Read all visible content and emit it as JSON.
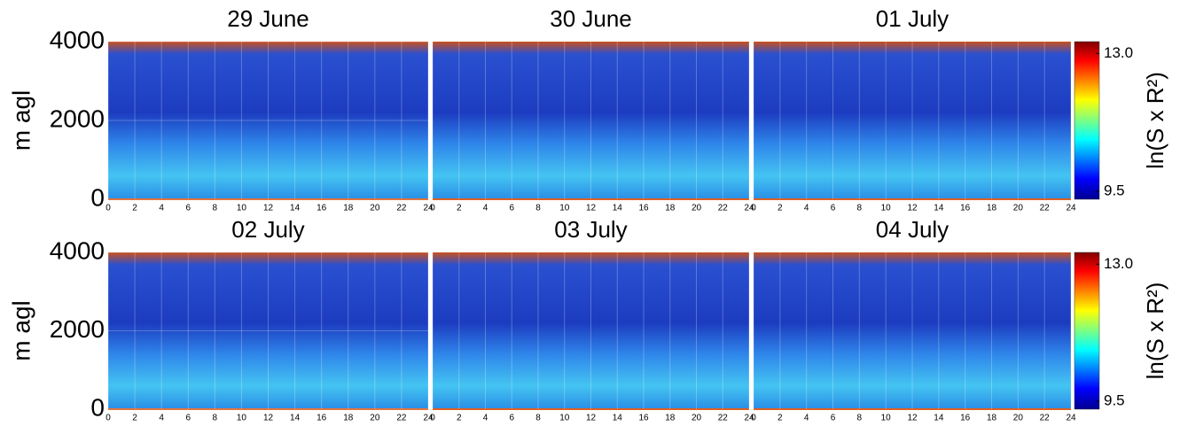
{
  "chart_data": [
    {
      "type": "heatmap",
      "title": "29 June",
      "ylabel": "m agl",
      "xlim": [
        0,
        24
      ],
      "xticks": [
        0,
        2,
        4,
        6,
        8,
        10,
        12,
        14,
        16,
        18,
        20,
        22,
        24
      ],
      "ylim": [
        0,
        4000
      ],
      "yticks": [
        0,
        2000,
        4000
      ],
      "grid": true
    },
    {
      "type": "heatmap",
      "title": "30 June",
      "xlim": [
        0,
        24
      ],
      "xticks": [
        0,
        2,
        4,
        6,
        8,
        10,
        12,
        14,
        16,
        18,
        20,
        22,
        24
      ],
      "ylim": [
        0,
        4000
      ],
      "grid": true
    },
    {
      "type": "heatmap",
      "title": "01 July",
      "xlim": [
        0,
        24
      ],
      "xticks": [
        0,
        2,
        4,
        6,
        8,
        10,
        12,
        14,
        16,
        18,
        20,
        22,
        24
      ],
      "ylim": [
        0,
        4000
      ],
      "grid": true,
      "colorbar": {
        "label": "ln(S x R²)",
        "lim": [
          9.3,
          13.3
        ],
        "ticks": [
          {
            "value": 13.0,
            "label": "13.0"
          },
          9.5
        ]
      }
    },
    {
      "type": "heatmap",
      "title": "02 July",
      "ylabel": "m agl",
      "xlim": [
        0,
        24
      ],
      "xticks": [
        0,
        2,
        4,
        6,
        8,
        10,
        12,
        14,
        16,
        18,
        20,
        22,
        24
      ],
      "ylim": [
        0,
        4000
      ],
      "yticks": [
        0,
        2000,
        4000
      ],
      "grid": true
    },
    {
      "type": "heatmap",
      "title": "03 July",
      "xlim": [
        0,
        24
      ],
      "xticks": [
        0,
        2,
        4,
        6,
        8,
        10,
        12,
        14,
        16,
        18,
        20,
        22,
        24
      ],
      "ylim": [
        0,
        4000
      ],
      "grid": true
    },
    {
      "type": "heatmap",
      "title": "04 July",
      "xlim": [
        0,
        24
      ],
      "xticks": [
        0,
        2,
        4,
        6,
        8,
        10,
        12,
        14,
        16,
        18,
        20,
        22,
        24
      ],
      "ylim": [
        0,
        4000
      ],
      "grid": true,
      "colorbar": {
        "label": "ln(S x R²)",
        "lim": [
          9.3,
          13.3
        ],
        "ticks": [
          {
            "value": 13.0,
            "label": "13.0"
          },
          9.5
        ]
      }
    }
  ]
}
